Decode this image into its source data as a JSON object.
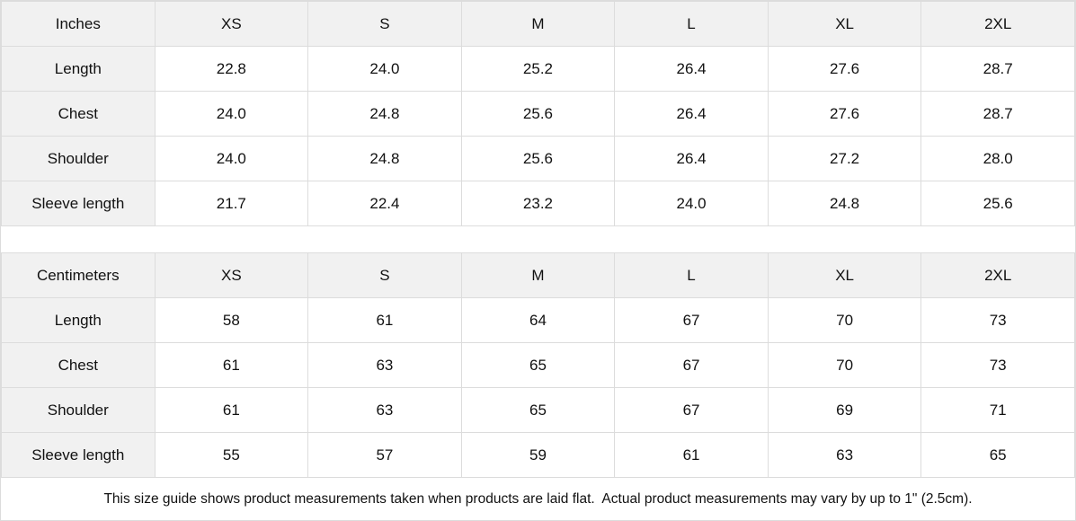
{
  "chart_data": [
    {
      "type": "table",
      "unit": "Inches",
      "columns": [
        "XS",
        "S",
        "M",
        "L",
        "XL",
        "2XL"
      ],
      "rows": [
        {
          "label": "Length",
          "values": [
            "22.8",
            "24.0",
            "25.2",
            "26.4",
            "27.6",
            "28.7"
          ]
        },
        {
          "label": "Chest",
          "values": [
            "24.0",
            "24.8",
            "25.6",
            "26.4",
            "27.6",
            "28.7"
          ]
        },
        {
          "label": "Shoulder",
          "values": [
            "24.0",
            "24.8",
            "25.6",
            "26.4",
            "27.2",
            "28.0"
          ]
        },
        {
          "label": "Sleeve length",
          "values": [
            "21.7",
            "22.4",
            "23.2",
            "24.0",
            "24.8",
            "25.6"
          ]
        }
      ]
    },
    {
      "type": "table",
      "unit": "Centimeters",
      "columns": [
        "XS",
        "S",
        "M",
        "L",
        "XL",
        "2XL"
      ],
      "rows": [
        {
          "label": "Length",
          "values": [
            "58",
            "61",
            "64",
            "67",
            "70",
            "73"
          ]
        },
        {
          "label": "Chest",
          "values": [
            "61",
            "63",
            "65",
            "67",
            "70",
            "73"
          ]
        },
        {
          "label": "Shoulder",
          "values": [
            "61",
            "63",
            "65",
            "67",
            "69",
            "71"
          ]
        },
        {
          "label": "Sleeve length",
          "values": [
            "55",
            "57",
            "59",
            "61",
            "63",
            "65"
          ]
        }
      ]
    }
  ],
  "footer": {
    "note": "This size guide shows product measurements taken when products are laid flat.  Actual product measurements may vary by up to 1\" (2.5cm)."
  },
  "colors": {
    "header_bg": "#f1f1f1",
    "border": "#dcdcdc",
    "text": "#111111"
  }
}
